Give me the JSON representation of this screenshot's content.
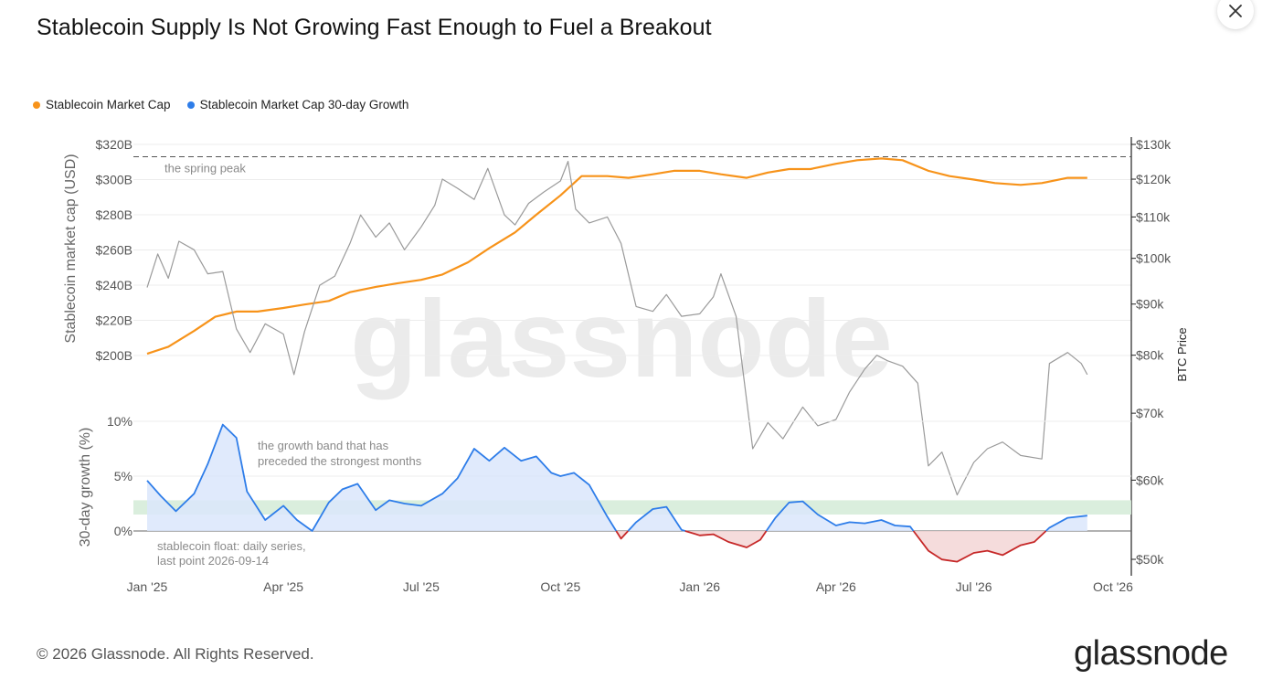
{
  "header": {
    "title": "Stablecoin Supply Is Not Growing Fast Enough to Fuel a Breakout"
  },
  "legend": [
    {
      "label": "Stablecoin Market Cap",
      "color": "#f7931a"
    },
    {
      "label": "Stablecoin Market Cap 30-day Growth",
      "color": "#2e7de9"
    }
  ],
  "footer": {
    "copyright": "© 2026 Glassnode. All Rights Reserved.",
    "brand": "glassnode"
  },
  "watermark": "glassnode",
  "icons": {
    "close": "close-icon"
  },
  "chart_data": {
    "type": "line",
    "title": "Stablecoin Supply Is Not Growing Fast Enough to Fuel a Breakout",
    "x_range": [
      "2025-01-01",
      "2026-10-01"
    ],
    "x_ticks": [
      {
        "date": "2025-01-01",
        "label": "Jan '25"
      },
      {
        "date": "2025-04-01",
        "label": "Apr '25"
      },
      {
        "date": "2025-07-01",
        "label": "Jul '25"
      },
      {
        "date": "2025-10-01",
        "label": "Oct '25"
      },
      {
        "date": "2026-01-01",
        "label": "Jan '26"
      },
      {
        "date": "2026-04-01",
        "label": "Apr '26"
      },
      {
        "date": "2026-07-01",
        "label": "Jul '26"
      },
      {
        "date": "2026-10-01",
        "label": "Oct '26"
      }
    ],
    "top_panel": {
      "ylabel_left": "Stablecoin market cap (USD)",
      "ylabel_right": "BTC Price",
      "left_ylim": [
        200,
        320
      ],
      "left_ticks": [
        {
          "value": 200,
          "label": "$200B"
        },
        {
          "value": 220,
          "label": "$220B"
        },
        {
          "value": 240,
          "label": "$240B"
        },
        {
          "value": 260,
          "label": "$260B"
        },
        {
          "value": 280,
          "label": "$280B"
        },
        {
          "value": 300,
          "label": "$300B"
        },
        {
          "value": 320,
          "label": "$320B"
        }
      ],
      "right_scale": "log",
      "right_ticks": [
        {
          "value": 50000,
          "label": "$50k"
        },
        {
          "value": 60000,
          "label": "$60k"
        },
        {
          "value": 70000,
          "label": "$70k"
        },
        {
          "value": 80000,
          "label": "$80k"
        },
        {
          "value": 90000,
          "label": "$90k"
        },
        {
          "value": 100000,
          "label": "$100k"
        },
        {
          "value": 110000,
          "label": "$110k"
        },
        {
          "value": 120000,
          "label": "$120k"
        },
        {
          "value": 130000,
          "label": "$130k"
        }
      ],
      "reference_line": {
        "value": 313,
        "label": "the spring peak",
        "style": "dashed"
      },
      "series": [
        {
          "name": "Stablecoin Market Cap",
          "axis": "left",
          "unit": "B USD",
          "color": "#f7931a",
          "points": [
            [
              "2025-01-01",
              201
            ],
            [
              "2025-01-15",
              205
            ],
            [
              "2025-02-01",
              214
            ],
            [
              "2025-02-15",
              222
            ],
            [
              "2025-03-01",
              225
            ],
            [
              "2025-03-15",
              225
            ],
            [
              "2025-04-01",
              227
            ],
            [
              "2025-04-15",
              229
            ],
            [
              "2025-05-01",
              231
            ],
            [
              "2025-05-15",
              236
            ],
            [
              "2025-06-01",
              239
            ],
            [
              "2025-06-15",
              241
            ],
            [
              "2025-07-01",
              243
            ],
            [
              "2025-07-15",
              246
            ],
            [
              "2025-08-01",
              253
            ],
            [
              "2025-08-15",
              261
            ],
            [
              "2025-09-01",
              270
            ],
            [
              "2025-09-15",
              280
            ],
            [
              "2025-10-01",
              291
            ],
            [
              "2025-10-15",
              302
            ],
            [
              "2025-11-01",
              302
            ],
            [
              "2025-11-15",
              301
            ],
            [
              "2025-12-01",
              303
            ],
            [
              "2025-12-15",
              305
            ],
            [
              "2026-01-01",
              305
            ],
            [
              "2026-01-15",
              303
            ],
            [
              "2026-02-01",
              301
            ],
            [
              "2026-02-15",
              304
            ],
            [
              "2026-03-01",
              306
            ],
            [
              "2026-03-15",
              306
            ],
            [
              "2026-04-01",
              309
            ],
            [
              "2026-04-15",
              311
            ],
            [
              "2026-05-01",
              312
            ],
            [
              "2026-05-15",
              311
            ],
            [
              "2026-06-01",
              305
            ],
            [
              "2026-06-15",
              302
            ],
            [
              "2026-07-01",
              300
            ],
            [
              "2026-07-15",
              298
            ],
            [
              "2026-08-01",
              297
            ],
            [
              "2026-08-15",
              298
            ],
            [
              "2026-09-01",
              301
            ],
            [
              "2026-09-14",
              301
            ]
          ]
        },
        {
          "name": "BTC Price",
          "axis": "right",
          "unit": "USD",
          "color": "#9a9a9a",
          "points": [
            [
              "2025-01-01",
              93500
            ],
            [
              "2025-01-08",
              101000
            ],
            [
              "2025-01-15",
              95500
            ],
            [
              "2025-01-22",
              104000
            ],
            [
              "2025-02-01",
              102000
            ],
            [
              "2025-02-10",
              96500
            ],
            [
              "2025-02-20",
              97000
            ],
            [
              "2025-03-01",
              85000
            ],
            [
              "2025-03-10",
              80500
            ],
            [
              "2025-03-20",
              86000
            ],
            [
              "2025-04-01",
              84000
            ],
            [
              "2025-04-08",
              76500
            ],
            [
              "2025-04-15",
              84500
            ],
            [
              "2025-04-25",
              94000
            ],
            [
              "2025-05-05",
              96000
            ],
            [
              "2025-05-15",
              103500
            ],
            [
              "2025-05-22",
              110500
            ],
            [
              "2025-06-01",
              105000
            ],
            [
              "2025-06-10",
              108500
            ],
            [
              "2025-06-20",
              102000
            ],
            [
              "2025-07-01",
              107500
            ],
            [
              "2025-07-10",
              113000
            ],
            [
              "2025-07-15",
              120000
            ],
            [
              "2025-07-25",
              117500
            ],
            [
              "2025-08-05",
              114500
            ],
            [
              "2025-08-14",
              123000
            ],
            [
              "2025-08-25",
              110500
            ],
            [
              "2025-09-01",
              108000
            ],
            [
              "2025-09-10",
              113500
            ],
            [
              "2025-09-20",
              116500
            ],
            [
              "2025-10-01",
              119500
            ],
            [
              "2025-10-06",
              125000
            ],
            [
              "2025-10-11",
              112000
            ],
            [
              "2025-10-20",
              108500
            ],
            [
              "2025-11-01",
              110000
            ],
            [
              "2025-11-10",
              103500
            ],
            [
              "2025-11-20",
              89500
            ],
            [
              "2025-12-01",
              88500
            ],
            [
              "2025-12-10",
              92000
            ],
            [
              "2025-12-20",
              87500
            ],
            [
              "2026-01-01",
              88000
            ],
            [
              "2026-01-10",
              91500
            ],
            [
              "2026-01-15",
              96500
            ],
            [
              "2026-01-25",
              87500
            ],
            [
              "2026-02-05",
              64500
            ],
            [
              "2026-02-15",
              68500
            ],
            [
              "2026-02-25",
              66000
            ],
            [
              "2026-03-10",
              71000
            ],
            [
              "2026-03-20",
              68000
            ],
            [
              "2026-04-01",
              69000
            ],
            [
              "2026-04-10",
              73500
            ],
            [
              "2026-04-20",
              77500
            ],
            [
              "2026-04-28",
              80000
            ],
            [
              "2026-05-05",
              79000
            ],
            [
              "2026-05-15",
              78000
            ],
            [
              "2026-05-25",
              75000
            ],
            [
              "2026-06-01",
              62000
            ],
            [
              "2026-06-10",
              64000
            ],
            [
              "2026-06-20",
              58000
            ],
            [
              "2026-07-01",
              62500
            ],
            [
              "2026-07-10",
              64500
            ],
            [
              "2026-07-20",
              65500
            ],
            [
              "2026-08-01",
              63500
            ],
            [
              "2026-08-15",
              63000
            ],
            [
              "2026-08-20",
              78500
            ],
            [
              "2026-09-01",
              80500
            ],
            [
              "2026-09-10",
              78500
            ],
            [
              "2026-09-14",
              76500
            ]
          ]
        }
      ]
    },
    "bottom_panel": {
      "ylabel": "30-day growth (%)",
      "ylim": [
        -3,
        10
      ],
      "ticks": [
        {
          "value": 0,
          "label": "0%"
        },
        {
          "value": 5,
          "label": "5%"
        },
        {
          "value": 10,
          "label": "10%"
        }
      ],
      "band": {
        "low": 1.5,
        "high": 2.8,
        "label": "the growth band that has preceded the strongest months"
      },
      "note": "stablecoin float: daily series, last point 2026-09-14",
      "series": [
        {
          "name": "Stablecoin Market Cap 30-day Growth",
          "unit": "%",
          "color": "#2e7de9",
          "negative_color": "#c62828",
          "points": [
            [
              "2025-01-01",
              4.6
            ],
            [
              "2025-01-10",
              3.2
            ],
            [
              "2025-01-20",
              1.8
            ],
            [
              "2025-02-01",
              3.4
            ],
            [
              "2025-02-10",
              6.1
            ],
            [
              "2025-02-20",
              9.7
            ],
            [
              "2025-03-01",
              8.5
            ],
            [
              "2025-03-08",
              3.6
            ],
            [
              "2025-03-20",
              1.0
            ],
            [
              "2025-04-01",
              2.3
            ],
            [
              "2025-04-10",
              1.0
            ],
            [
              "2025-04-20",
              0.0
            ],
            [
              "2025-05-01",
              2.6
            ],
            [
              "2025-05-10",
              3.8
            ],
            [
              "2025-05-20",
              4.3
            ],
            [
              "2025-06-01",
              1.9
            ],
            [
              "2025-06-10",
              2.8
            ],
            [
              "2025-06-20",
              2.5
            ],
            [
              "2025-07-01",
              2.3
            ],
            [
              "2025-07-15",
              3.4
            ],
            [
              "2025-07-25",
              4.8
            ],
            [
              "2025-08-05",
              7.5
            ],
            [
              "2025-08-15",
              6.4
            ],
            [
              "2025-08-25",
              7.6
            ],
            [
              "2025-09-05",
              6.4
            ],
            [
              "2025-09-15",
              6.8
            ],
            [
              "2025-09-25",
              5.3
            ],
            [
              "2025-10-01",
              5.0
            ],
            [
              "2025-10-10",
              5.3
            ],
            [
              "2025-10-20",
              4.2
            ],
            [
              "2025-11-01",
              1.3
            ],
            [
              "2025-11-10",
              -0.7
            ],
            [
              "2025-11-20",
              0.8
            ],
            [
              "2025-12-01",
              2.0
            ],
            [
              "2025-12-10",
              2.2
            ],
            [
              "2025-12-20",
              0.1
            ],
            [
              "2026-01-01",
              -0.4
            ],
            [
              "2026-01-10",
              -0.3
            ],
            [
              "2026-01-20",
              -1.0
            ],
            [
              "2026-02-01",
              -1.5
            ],
            [
              "2026-02-10",
              -0.8
            ],
            [
              "2026-02-20",
              1.2
            ],
            [
              "2026-03-01",
              2.6
            ],
            [
              "2026-03-10",
              2.7
            ],
            [
              "2026-03-20",
              1.5
            ],
            [
              "2026-04-01",
              0.5
            ],
            [
              "2026-04-10",
              0.8
            ],
            [
              "2026-04-20",
              0.7
            ],
            [
              "2026-05-01",
              1.0
            ],
            [
              "2026-05-10",
              0.5
            ],
            [
              "2026-05-20",
              0.4
            ],
            [
              "2026-06-01",
              -1.8
            ],
            [
              "2026-06-10",
              -2.6
            ],
            [
              "2026-06-20",
              -2.8
            ],
            [
              "2026-07-01",
              -2.0
            ],
            [
              "2026-07-10",
              -1.8
            ],
            [
              "2026-07-20",
              -2.2
            ],
            [
              "2026-08-01",
              -1.3
            ],
            [
              "2026-08-10",
              -1.0
            ],
            [
              "2026-08-20",
              0.3
            ],
            [
              "2026-09-01",
              1.2
            ],
            [
              "2026-09-14",
              1.4
            ]
          ]
        }
      ]
    }
  }
}
